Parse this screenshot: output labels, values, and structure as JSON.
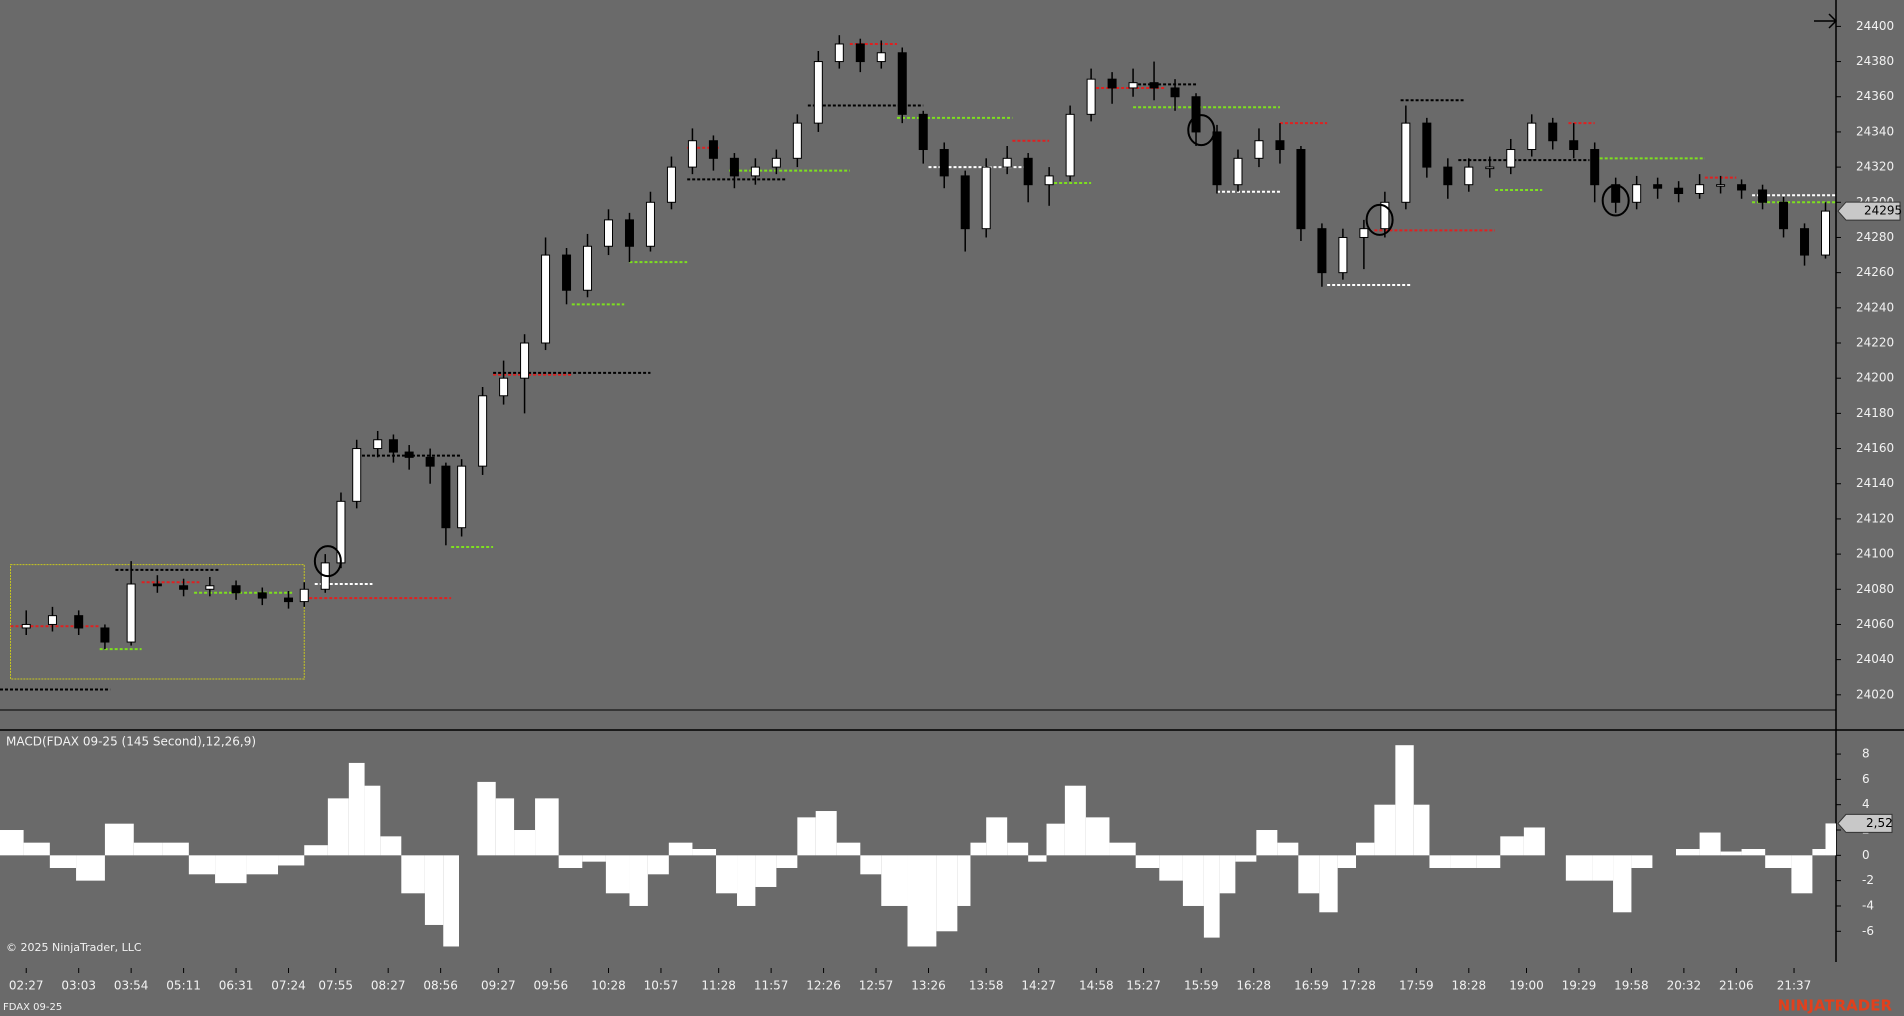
{
  "chart_data": [
    {
      "type": "candlestick",
      "xlim": [
        0,
        350
      ],
      "xticks": [
        {
          "value": 5,
          "label": "02:27"
        },
        {
          "value": 15,
          "label": "03:03"
        },
        {
          "value": 25,
          "label": "03:54"
        },
        {
          "value": 35,
          "label": "05:11"
        },
        {
          "value": 45,
          "label": "06:31"
        },
        {
          "value": 55,
          "label": "07:24"
        },
        {
          "value": 64,
          "label": "07:55"
        },
        {
          "value": 74,
          "label": "08:27"
        },
        {
          "value": 84,
          "label": "08:56"
        },
        {
          "value": 95,
          "label": "09:27"
        },
        {
          "value": 105,
          "label": "09:56"
        },
        {
          "value": 116,
          "label": "10:28"
        },
        {
          "value": 126,
          "label": "10:57"
        },
        {
          "value": 137,
          "label": "11:28"
        },
        {
          "value": 147,
          "label": "11:57"
        },
        {
          "value": 157,
          "label": "12:26"
        },
        {
          "value": 167,
          "label": "12:57"
        },
        {
          "value": 177,
          "label": "13:26"
        },
        {
          "value": 188,
          "label": "13:58"
        },
        {
          "value": 198,
          "label": "14:27"
        },
        {
          "value": 209,
          "label": "14:58"
        },
        {
          "value": 218,
          "label": "15:27"
        },
        {
          "value": 229,
          "label": "15:59"
        },
        {
          "value": 239,
          "label": "16:28"
        },
        {
          "value": 250,
          "label": "16:59"
        },
        {
          "value": 259,
          "label": "17:28"
        },
        {
          "value": 270,
          "label": "17:59"
        },
        {
          "value": 280,
          "label": "18:28"
        },
        {
          "value": 291,
          "label": "19:00"
        },
        {
          "value": 301,
          "label": "19:29"
        },
        {
          "value": 311,
          "label": "19:58"
        },
        {
          "value": 321,
          "label": "20:32"
        },
        {
          "value": 331,
          "label": "21:06"
        },
        {
          "value": 342,
          "label": "21:37"
        }
      ],
      "ylim": [
        24000,
        24415
      ],
      "yticks": [
        24020,
        24040,
        24060,
        24080,
        24100,
        24120,
        24140,
        24160,
        24180,
        24200,
        24220,
        24240,
        24260,
        24280,
        24300,
        24320,
        24340,
        24360,
        24380,
        24400
      ],
      "up_color": "#ffffff",
      "down_color": "#000000",
      "outline": "#000000",
      "x": [
        5,
        10,
        15,
        20,
        25,
        30,
        35,
        40,
        45,
        50,
        55,
        58,
        62,
        65,
        68,
        72,
        75,
        78,
        82,
        85,
        88,
        92,
        96,
        100,
        104,
        108,
        112,
        116,
        120,
        124,
        128,
        132,
        136,
        140,
        144,
        148,
        152,
        156,
        160,
        164,
        168,
        172,
        176,
        180,
        184,
        188,
        192,
        196,
        200,
        204,
        208,
        212,
        216,
        220,
        224,
        228,
        232,
        236,
        240,
        244,
        248,
        252,
        256,
        260,
        264,
        268,
        272,
        276,
        280,
        284,
        288,
        292,
        296,
        300,
        304,
        308,
        312,
        316,
        320,
        324,
        328,
        332,
        336,
        340,
        344,
        348
      ],
      "open": [
        24058,
        24060,
        24065,
        24058,
        24050,
        24083,
        24082,
        24080,
        24082,
        24078,
        24075,
        24073,
        24080,
        24095,
        24130,
        24160,
        24165,
        24158,
        24155,
        24150,
        24115,
        24150,
        24190,
        24200,
        24220,
        24270,
        24250,
        24275,
        24290,
        24275,
        24300,
        24320,
        24335,
        24325,
        24315,
        24320,
        24325,
        24345,
        24380,
        24390,
        24380,
        24385,
        24350,
        24330,
        24315,
        24285,
        24320,
        24325,
        24310,
        24315,
        24350,
        24370,
        24365,
        24368,
        24365,
        24360,
        24340,
        24310,
        24325,
        24335,
        24330,
        24285,
        24260,
        24280,
        24285,
        24300,
        24345,
        24320,
        24310,
        24320,
        24320,
        24330,
        24345,
        24335,
        24330,
        24310,
        24300,
        24310,
        24308,
        24305,
        24310,
        24310,
        24307,
        24300,
        24285,
        24270
      ],
      "high": [
        24068,
        24070,
        24068,
        24060,
        24096,
        24088,
        24086,
        24087,
        24085,
        24081,
        24079,
        24084,
        24100,
        24135,
        24165,
        24170,
        24168,
        24162,
        24160,
        24152,
        24154,
        24195,
        24210,
        24225,
        24280,
        24274,
        24282,
        24296,
        24294,
        24306,
        24326,
        24342,
        24338,
        24328,
        24325,
        24330,
        24350,
        24386,
        24395,
        24393,
        24392,
        24388,
        24352,
        24334,
        24318,
        24325,
        24332,
        24328,
        24320,
        24355,
        24376,
        24374,
        24376,
        24380,
        24370,
        24362,
        24344,
        24330,
        24342,
        24345,
        24332,
        24288,
        24285,
        24290,
        24306,
        24355,
        24348,
        24325,
        24325,
        24326,
        24336,
        24350,
        24348,
        24345,
        24334,
        24314,
        24315,
        24314,
        24312,
        24316,
        24315,
        24313,
        24310,
        24303,
        24288,
        24300
      ],
      "low": [
        24054,
        24056,
        24054,
        24046,
        24048,
        24078,
        24076,
        24076,
        24074,
        24071,
        24069,
        24070,
        24078,
        24092,
        24126,
        24155,
        24152,
        24148,
        24140,
        24105,
        24110,
        24145,
        24185,
        24180,
        24216,
        24242,
        24246,
        24270,
        24266,
        24272,
        24296,
        24316,
        24318,
        24308,
        24310,
        24316,
        24320,
        24340,
        24376,
        24374,
        24376,
        24345,
        24322,
        24308,
        24272,
        24280,
        24316,
        24300,
        24298,
        24312,
        24346,
        24356,
        24360,
        24358,
        24352,
        24332,
        24305,
        24306,
        24320,
        24322,
        24278,
        24252,
        24256,
        24262,
        24280,
        24296,
        24314,
        24302,
        24306,
        24314,
        24316,
        24326,
        24330,
        24325,
        24300,
        24294,
        24296,
        24302,
        24300,
        24302,
        24305,
        24302,
        24296,
        24280,
        24264,
        24268
      ],
      "close": [
        24060,
        24065,
        24058,
        24050,
        24083,
        24082,
        24080,
        24082,
        24078,
        24075,
        24073,
        24080,
        24095,
        24130,
        24160,
        24165,
        24158,
        24155,
        24150,
        24115,
        24150,
        24190,
        24200,
        24220,
        24270,
        24250,
        24275,
        24290,
        24275,
        24300,
        24320,
        24335,
        24325,
        24315,
        24320,
        24325,
        24345,
        24380,
        24390,
        24380,
        24385,
        24350,
        24330,
        24315,
        24285,
        24320,
        24325,
        24310,
        24315,
        24350,
        24370,
        24365,
        24368,
        24365,
        24360,
        24340,
        24310,
        24325,
        24335,
        24330,
        24285,
        24260,
        24280,
        24285,
        24300,
        24345,
        24320,
        24310,
        24320,
        24320,
        24330,
        24345,
        24335,
        24330,
        24310,
        24300,
        24310,
        24308,
        24305,
        24310,
        24310,
        24307,
        24300,
        24285,
        24270,
        24295
      ],
      "levels": [
        {
          "price": 24390,
          "from": 162,
          "to": 171,
          "color": "#e02020"
        },
        {
          "price": 24202,
          "from": 94,
          "to": 109,
          "color": "#e02020"
        },
        {
          "price": 24075,
          "from": 58,
          "to": 86,
          "color": "#e02020"
        },
        {
          "price": 24059,
          "from": 2,
          "to": 19,
          "color": "#e02020"
        },
        {
          "price": 24084,
          "from": 27,
          "to": 38,
          "color": "#e02020"
        },
        {
          "price": 24331,
          "from": 131,
          "to": 137,
          "color": "#e02020"
        },
        {
          "price": 24345,
          "from": 244,
          "to": 253,
          "color": "#e02020"
        },
        {
          "price": 24284,
          "from": 262,
          "to": 285,
          "color": "#e02020"
        },
        {
          "price": 24345,
          "from": 299,
          "to": 304,
          "color": "#e02020"
        },
        {
          "price": 24365,
          "from": 208,
          "to": 222,
          "color": "#e02020"
        },
        {
          "price": 24314,
          "from": 325,
          "to": 331,
          "color": "#e02020"
        },
        {
          "price": 24335,
          "from": 193,
          "to": 200,
          "color": "#e02020"
        },
        {
          "price": 24348,
          "from": 171,
          "to": 193,
          "color": "#7ee020"
        },
        {
          "price": 24354,
          "from": 216,
          "to": 244,
          "color": "#7ee020"
        },
        {
          "price": 24318,
          "from": 139,
          "to": 162,
          "color": "#7ee020"
        },
        {
          "price": 24325,
          "from": 304,
          "to": 325,
          "color": "#7ee020"
        },
        {
          "price": 24300,
          "from": 334,
          "to": 350,
          "color": "#7ee020"
        },
        {
          "price": 24242,
          "from": 109,
          "to": 119,
          "color": "#7ee020"
        },
        {
          "price": 24266,
          "from": 120,
          "to": 131,
          "color": "#7ee020"
        },
        {
          "price": 24104,
          "from": 86,
          "to": 94,
          "color": "#7ee020"
        },
        {
          "price": 24046,
          "from": 19,
          "to": 27,
          "color": "#7ee020"
        },
        {
          "price": 24307,
          "from": 285,
          "to": 294,
          "color": "#7ee020"
        },
        {
          "price": 24311,
          "from": 200,
          "to": 208,
          "color": "#7ee020"
        },
        {
          "price": 24078,
          "from": 37,
          "to": 56,
          "color": "#7ee020"
        },
        {
          "price": 24320,
          "from": 177,
          "to": 197,
          "color": "#ffffff"
        },
        {
          "price": 24306,
          "from": 232,
          "to": 244,
          "color": "#ffffff"
        },
        {
          "price": 24253,
          "from": 253,
          "to": 269,
          "color": "#ffffff"
        },
        {
          "price": 24304,
          "from": 334,
          "to": 350,
          "color": "#ffffff"
        },
        {
          "price": 24083,
          "from": 60,
          "to": 71,
          "color": "#ffffff"
        },
        {
          "price": 24355,
          "from": 154,
          "to": 176,
          "color": "#000000"
        },
        {
          "price": 24358,
          "from": 267,
          "to": 279,
          "color": "#000000"
        },
        {
          "price": 24203,
          "from": 94,
          "to": 124,
          "color": "#000000"
        },
        {
          "price": 24156,
          "from": 69,
          "to": 88,
          "color": "#000000"
        },
        {
          "price": 24313,
          "from": 131,
          "to": 150,
          "color": "#000000"
        },
        {
          "price": 24023,
          "from": 0,
          "to": 21,
          "color": "#000000"
        },
        {
          "price": 24091,
          "from": 22,
          "to": 42,
          "color": "#000000"
        },
        {
          "price": 24324,
          "from": 278,
          "to": 303,
          "color": "#000000"
        },
        {
          "price": 24367,
          "from": 216,
          "to": 228,
          "color": "#000000"
        }
      ],
      "box": {
        "x": [
          2,
          58
        ],
        "price": [
          24029,
          24094
        ],
        "color": "#c8c81e"
      },
      "markers": [
        {
          "x": 62.5,
          "price": 24096
        },
        {
          "x": 229,
          "price": 24341
        },
        {
          "x": 263,
          "price": 24290
        },
        {
          "x": 308,
          "price": 24301
        }
      ]
    },
    {
      "type": "bar",
      "title": "MACD(FDAX 09-25 (145 Second),12,26,9)",
      "color": "#ffffff",
      "ylim": [
        -8.9,
        9.9
      ],
      "yticks": [
        -6,
        -4,
        -2,
        0,
        2,
        4,
        6,
        8
      ],
      "x": [
        2,
        7,
        12,
        17,
        23,
        28,
        34,
        38,
        44,
        50,
        56,
        60,
        65,
        68,
        71,
        74,
        79,
        83,
        86,
        89,
        93,
        96,
        100,
        104,
        109,
        113,
        118,
        122,
        125,
        130,
        134,
        139,
        142,
        146,
        150,
        154,
        157,
        162,
        166,
        170,
        176,
        181,
        184,
        186,
        190,
        194,
        198,
        201,
        205,
        209,
        214,
        219,
        223,
        228,
        231,
        234,
        237,
        242,
        245,
        250,
        253,
        257,
        260,
        264,
        268,
        271,
        274,
        279,
        284,
        288,
        293,
        296,
        301,
        306,
        309,
        313,
        317,
        322,
        326,
        330,
        334,
        339,
        344,
        347,
        349
      ],
      "values": [
        2,
        1,
        -1,
        -2,
        2.5,
        1,
        1,
        -1.5,
        -2.2,
        -1.5,
        -0.8,
        0.8,
        4.5,
        7.3,
        5.5,
        1.5,
        -3,
        -5.5,
        -7.2,
        0,
        5.8,
        4.5,
        2,
        4.5,
        -1,
        -0.5,
        -3,
        -4,
        -1.5,
        1,
        0.5,
        -3,
        -4,
        -2.5,
        -1,
        3,
        3.5,
        1,
        -1.5,
        -4,
        -7.2,
        -6,
        -4,
        1,
        3,
        1,
        -0.5,
        2.5,
        5.5,
        3,
        1,
        -1,
        -2,
        -4,
        -6.5,
        -3,
        -0.5,
        2,
        1,
        -3,
        -4.5,
        -1,
        1,
        4,
        8.7,
        4,
        -1,
        -1,
        -1,
        1.5,
        2.2,
        0,
        -2,
        -2,
        -4.5,
        -1,
        0,
        0.5,
        1.8,
        0.3,
        0.5,
        -1,
        -3,
        0.5,
        2.52
      ],
      "last_label": "2,52"
    }
  ],
  "copyright": "© 2025 NinjaTrader, LLC",
  "instrument": "FDAX 09-25",
  "brand": "NINJATRADER"
}
